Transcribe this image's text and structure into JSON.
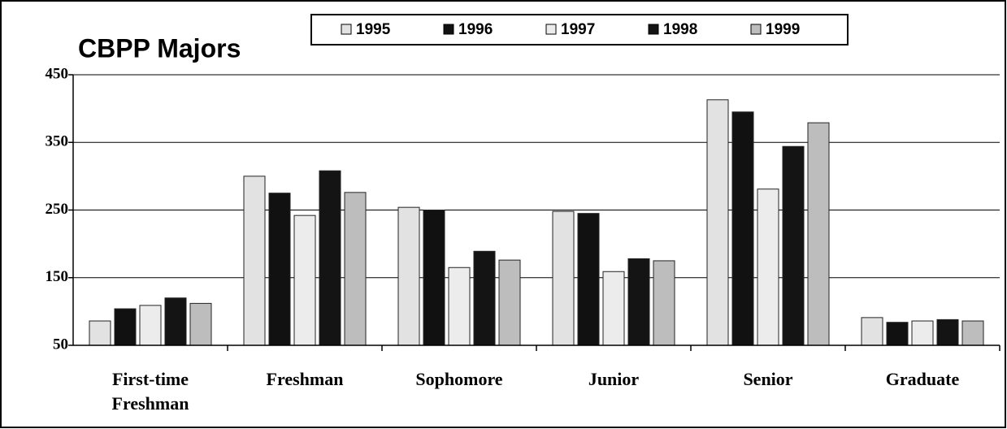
{
  "chart_data": {
    "type": "bar",
    "title": "CBPP Majors",
    "categories": [
      "First-time Freshman",
      "Freshman",
      "Sophomore",
      "Junior",
      "Senior",
      "Graduate"
    ],
    "series": [
      {
        "name": "1995",
        "color": "#e2e2e2",
        "values": [
          86,
          300,
          254,
          248,
          413,
          91
        ]
      },
      {
        "name": "1996",
        "color": "#111111",
        "values": [
          104,
          275,
          250,
          245,
          395,
          84
        ]
      },
      {
        "name": "1997",
        "color": "#ececec",
        "values": [
          109,
          242,
          165,
          159,
          281,
          86
        ]
      },
      {
        "name": "1998",
        "color": "#141414",
        "values": [
          120,
          308,
          189,
          178,
          344,
          88
        ]
      },
      {
        "name": "1999",
        "color": "#bdbdbd",
        "values": [
          112,
          276,
          176,
          175,
          379,
          86
        ]
      }
    ],
    "ylim": [
      50,
      450
    ],
    "yticks": [
      50,
      150,
      250,
      350,
      450
    ],
    "grid": true
  }
}
